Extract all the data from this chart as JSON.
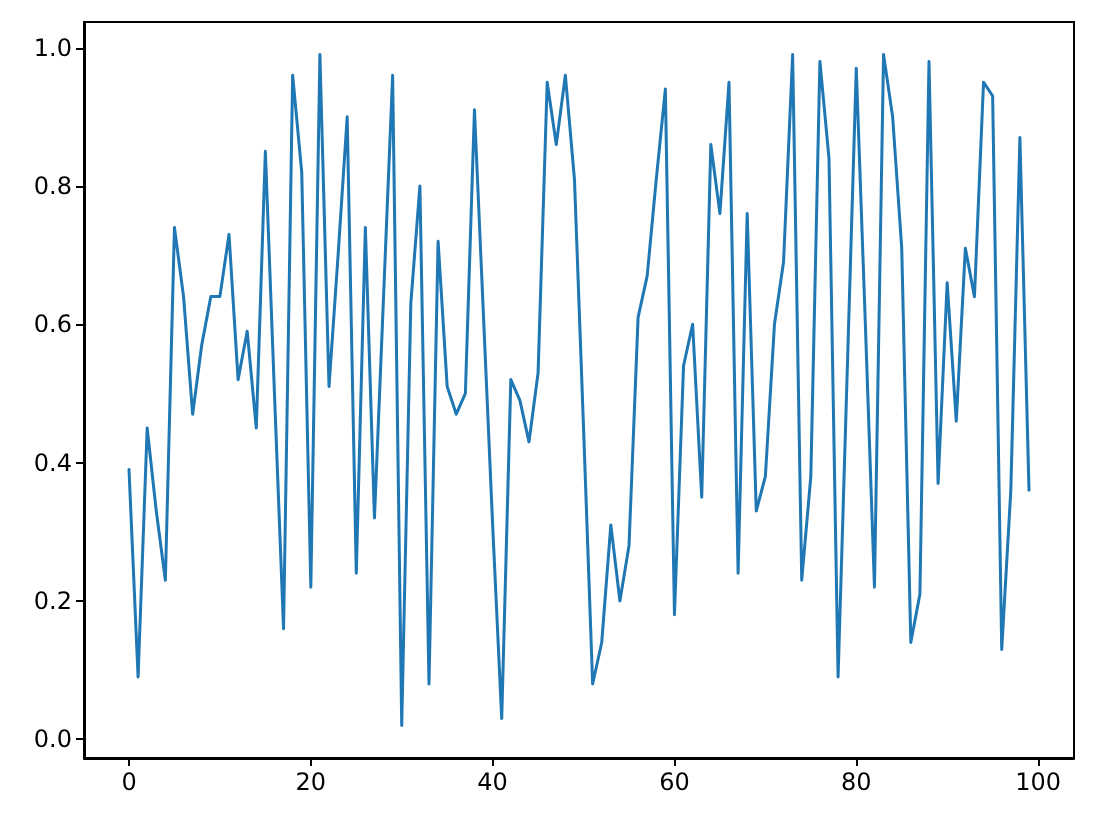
{
  "chart_data": {
    "type": "line",
    "color": "#1f77b4",
    "marker": "none",
    "line_style": "solid",
    "x": [
      0,
      1,
      2,
      3,
      4,
      5,
      6,
      7,
      8,
      9,
      10,
      11,
      12,
      13,
      14,
      15,
      16,
      17,
      18,
      19,
      20,
      21,
      22,
      23,
      24,
      25,
      26,
      27,
      28,
      29,
      30,
      31,
      32,
      33,
      34,
      35,
      36,
      37,
      38,
      39,
      40,
      41,
      42,
      43,
      44,
      45,
      46,
      47,
      48,
      49,
      50,
      51,
      52,
      53,
      54,
      55,
      56,
      57,
      58,
      59,
      60,
      61,
      62,
      63,
      64,
      65,
      66,
      67,
      68,
      69,
      70,
      71,
      72,
      73,
      74,
      75,
      76,
      77,
      78,
      79,
      80,
      81,
      82,
      83,
      84,
      85,
      86,
      87,
      88,
      89,
      90,
      91,
      92,
      93,
      94,
      95,
      96,
      97,
      98,
      99
    ],
    "values": [
      0.39,
      0.09,
      0.45,
      0.33,
      0.23,
      0.74,
      0.64,
      0.47,
      0.57,
      0.64,
      0.64,
      0.73,
      0.52,
      0.59,
      0.45,
      0.85,
      0.5,
      0.16,
      0.96,
      0.82,
      0.22,
      0.99,
      0.51,
      0.7,
      0.9,
      0.24,
      0.74,
      0.32,
      0.64,
      0.96,
      0.02,
      0.63,
      0.8,
      0.08,
      0.72,
      0.51,
      0.47,
      0.5,
      0.91,
      0.61,
      0.31,
      0.03,
      0.52,
      0.49,
      0.43,
      0.53,
      0.95,
      0.86,
      0.96,
      0.81,
      0.45,
      0.08,
      0.14,
      0.31,
      0.2,
      0.28,
      0.61,
      0.67,
      0.81,
      0.94,
      0.18,
      0.54,
      0.6,
      0.35,
      0.86,
      0.76,
      0.95,
      0.24,
      0.76,
      0.33,
      0.38,
      0.6,
      0.69,
      0.99,
      0.23,
      0.38,
      0.98,
      0.84,
      0.09,
      0.53,
      0.97,
      0.6,
      0.22,
      0.99,
      0.9,
      0.71,
      0.14,
      0.21,
      0.98,
      0.37,
      0.66,
      0.46,
      0.71,
      0.64,
      0.95,
      0.93,
      0.13,
      0.36,
      0.87,
      0.36
    ],
    "xlim": [
      -4.95,
      103.95
    ],
    "ylim": [
      -0.027,
      1.037
    ],
    "xticks": [
      0,
      20,
      40,
      60,
      80,
      100
    ],
    "yticks": [
      {
        "value": 0,
        "label": "0.0"
      },
      0.2,
      0.4,
      0.6,
      0.8,
      {
        "value": 1,
        "label": "1.0"
      }
    ]
  }
}
